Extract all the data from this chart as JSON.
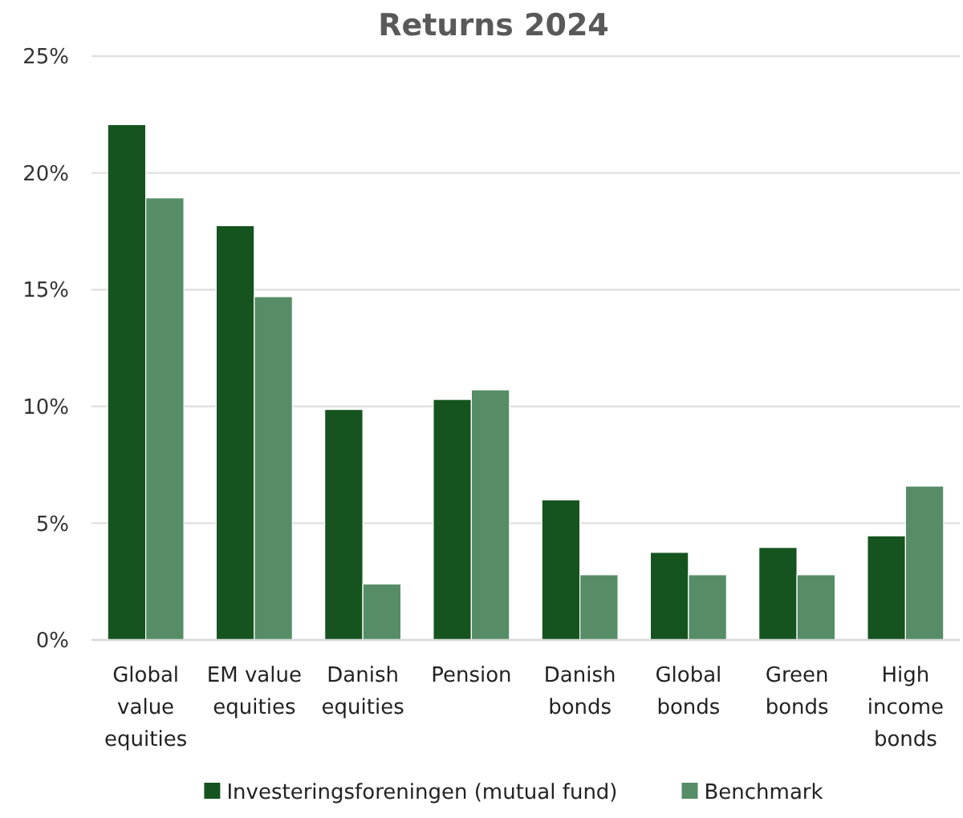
{
  "chart_data": {
    "type": "bar",
    "title": "Returns 2024",
    "categories": [
      "Global value equities",
      "EM value equities",
      "Danish equities",
      "Pension",
      "Danish bonds",
      "Global bonds",
      "Green bonds",
      "High income bonds"
    ],
    "series": [
      {
        "name": "Investeringsforeningen (mutual fund)",
        "color": "#16541f",
        "values": [
          22.07,
          17.74,
          9.87,
          10.3,
          6.0,
          3.75,
          3.96,
          4.46
        ]
      },
      {
        "name": "Benchmark",
        "color": "#568d66",
        "values": [
          18.93,
          14.7,
          2.4,
          10.71,
          2.79,
          2.79,
          2.79,
          6.59
        ]
      }
    ],
    "ylim": [
      0,
      25
    ],
    "yticks": [
      {
        "value": 0,
        "label": "0%"
      },
      {
        "value": 5,
        "label": "5%"
      },
      {
        "value": 10,
        "label": "10%"
      },
      {
        "value": 15,
        "label": "15%"
      },
      {
        "value": 20,
        "label": "20%"
      },
      {
        "value": 25,
        "label": "25%"
      }
    ],
    "grid": "y",
    "legend": "bottom"
  }
}
